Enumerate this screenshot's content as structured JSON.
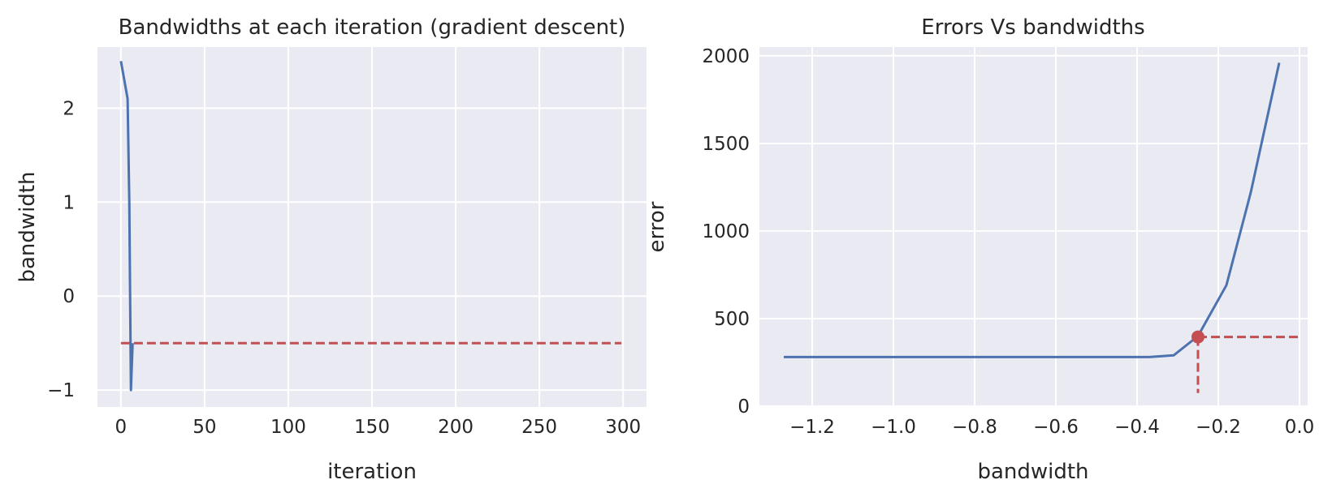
{
  "chart_data": [
    {
      "type": "line",
      "title": "Bandwidths at each iteration (gradient descent)",
      "xlabel": "iteration",
      "ylabel": "bandwidth",
      "xlim": [
        -14,
        314
      ],
      "ylim": [
        -1.18,
        2.65
      ],
      "xticks": [
        0,
        50,
        100,
        150,
        200,
        250,
        300
      ],
      "xtick_labels": [
        "0",
        "50",
        "100",
        "150",
        "200",
        "250",
        "300"
      ],
      "yticks": [
        2,
        1,
        0,
        -1
      ],
      "ytick_labels": [
        "2",
        "1",
        "0",
        "−1"
      ],
      "grid": true,
      "series": [
        {
          "color": "#4c72b0",
          "style": "solid",
          "x": [
            0,
            4,
            5,
            6,
            7
          ],
          "y": [
            2.5,
            2.1,
            1.0,
            -1.0,
            -0.5
          ]
        },
        {
          "color": "#c44e52",
          "style": "dashed",
          "x": [
            0,
            299
          ],
          "y": [
            -0.5,
            -0.5
          ]
        }
      ]
    },
    {
      "type": "line",
      "title": "Errors Vs bandwidths",
      "xlabel": "bandwidth",
      "ylabel": "error",
      "xlim": [
        -1.33,
        0.02
      ],
      "ylim": [
        -5,
        2050
      ],
      "xticks": [
        -1.2,
        -1.0,
        -0.8,
        -0.6,
        -0.4,
        -0.2,
        0.0
      ],
      "xtick_labels": [
        "−1.2",
        "−1.0",
        "−0.8",
        "−0.6",
        "−0.4",
        "−0.2",
        "0.0"
      ],
      "yticks": [
        2000,
        1500,
        1000,
        500,
        0
      ],
      "ytick_labels": [
        "2000",
        "1500",
        "1000",
        "500",
        "0"
      ],
      "grid": true,
      "series": [
        {
          "color": "#4c72b0",
          "style": "solid",
          "x": [
            -1.27,
            -1.0,
            -0.8,
            -0.6,
            -0.37,
            -0.31,
            -0.25,
            -0.18,
            -0.12,
            -0.05
          ],
          "y": [
            280,
            280,
            280,
            280,
            280,
            290,
            400,
            690,
            1220,
            1960
          ]
        },
        {
          "color": "#c44e52",
          "style": "dashed",
          "x": [
            -0.25,
            0.0
          ],
          "y": [
            395,
            395
          ]
        },
        {
          "color": "#c44e52",
          "style": "dashed",
          "x": [
            -0.25,
            -0.25
          ],
          "y": [
            395,
            75
          ]
        }
      ],
      "markers": [
        {
          "x": -0.25,
          "y": 395,
          "color": "#c44e52"
        }
      ]
    }
  ]
}
